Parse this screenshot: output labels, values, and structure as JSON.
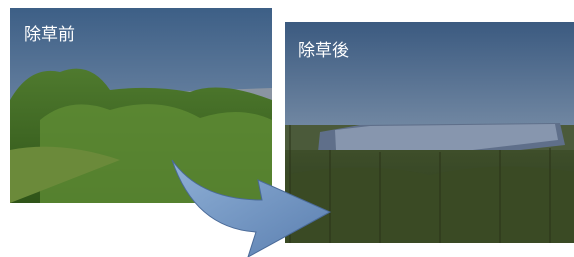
{
  "images": [
    {
      "label": "除草前"
    },
    {
      "label": "除草後"
    }
  ]
}
